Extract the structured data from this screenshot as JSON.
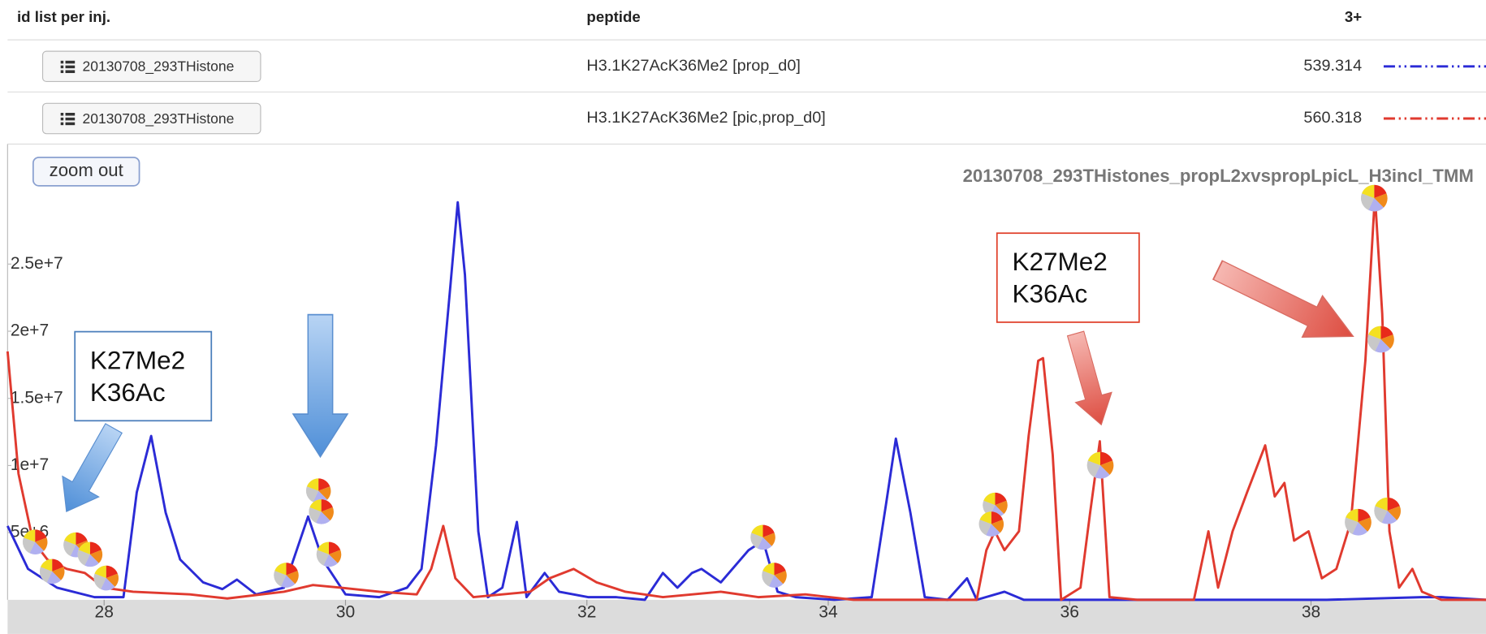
{
  "table": {
    "headers": [
      "id list per inj.",
      "peptide",
      "3+"
    ],
    "rows": [
      [
        "20130708_293THistone",
        "H3.1K27AcK36Me2 [prop_d0]",
        "539.314"
      ],
      [
        "20130708_293THistone",
        "H3.1K27AcK36Me2 [pic,prop_d0]",
        "560.318"
      ]
    ]
  },
  "zoom_button": "zoom out",
  "chart_data": {
    "type": "line",
    "title": "20130708_293THistones_propL2xvspropLpicL_H3incl_TMM",
    "xlim": [
      27.2,
      39.45
    ],
    "xticks": [
      28,
      30,
      32,
      34,
      36,
      38
    ],
    "ylim": [
      0,
      30900000
    ],
    "yticks": [
      {
        "value": 5000000,
        "label": "5e+6"
      },
      {
        "value": 10000000,
        "label": "1e+7"
      },
      {
        "value": 15000000,
        "label": "1.5e+7"
      },
      {
        "value": 20000000,
        "label": "2e+7"
      },
      {
        "value": 25000000,
        "label": "2.5e+7"
      }
    ],
    "grid": false,
    "series": [
      {
        "color": "#2b2bd6",
        "x": [
          27.2,
          27.37,
          27.61,
          27.92,
          28.16,
          28.27,
          28.39,
          28.51,
          28.63,
          28.82,
          28.98,
          29.1,
          29.26,
          29.49,
          29.69,
          29.81,
          30.0,
          30.28,
          30.51,
          30.63,
          30.75,
          30.87,
          30.93,
          30.99,
          31.1,
          31.18,
          31.3,
          31.42,
          31.5,
          31.65,
          31.77,
          32.01,
          32.24,
          32.48,
          32.63,
          32.75,
          32.87,
          32.95,
          33.11,
          33.34,
          33.46,
          33.58,
          33.73,
          34.05,
          34.36,
          34.48,
          34.56,
          34.68,
          34.8,
          34.99,
          35.15,
          35.23,
          35.46,
          35.62,
          36.56,
          38.13,
          38.92,
          39.08,
          39.45
        ],
        "values": [
          5500000,
          2300000,
          900000,
          200000,
          200000,
          8000000,
          12200000,
          6500000,
          3000000,
          1300000,
          800000,
          1500000,
          400000,
          900000,
          6200000,
          3000000,
          400000,
          200000,
          900000,
          2300000,
          11500000,
          23500000,
          29600000,
          24200000,
          5100000,
          200000,
          900000,
          5800000,
          200000,
          2000000,
          600000,
          200000,
          200000,
          0,
          2000000,
          900000,
          2000000,
          2300000,
          1300000,
          3700000,
          4400000,
          600000,
          200000,
          0,
          200000,
          7200000,
          12000000,
          6500000,
          200000,
          0,
          1600000,
          0,
          600000,
          0,
          0,
          0,
          200000,
          200000,
          0
        ]
      },
      {
        "color": "#e03a2f",
        "x": [
          27.2,
          27.29,
          27.41,
          27.53,
          27.69,
          27.84,
          28.0,
          28.24,
          28.71,
          29.02,
          29.49,
          29.73,
          29.96,
          30.28,
          30.59,
          30.71,
          30.81,
          30.91,
          31.06,
          31.53,
          31.69,
          31.89,
          32.08,
          32.32,
          32.63,
          33.11,
          33.42,
          33.81,
          34.21,
          34.99,
          35.23,
          35.31,
          35.38,
          35.46,
          35.58,
          35.66,
          35.74,
          35.78,
          35.86,
          35.93,
          36.09,
          36.17,
          36.25,
          36.33,
          36.56,
          37.03,
          37.15,
          37.23,
          37.35,
          37.47,
          37.62,
          37.7,
          37.78,
          37.86,
          37.98,
          38.09,
          38.21,
          38.33,
          38.45,
          38.53,
          38.59,
          38.65,
          38.73,
          38.84,
          38.92,
          39.08,
          39.45
        ],
        "values": [
          18500000,
          9400000,
          4400000,
          3000000,
          2300000,
          2000000,
          900000,
          600000,
          400000,
          100000,
          600000,
          1100000,
          900000,
          600000,
          400000,
          2300000,
          5500000,
          1600000,
          200000,
          600000,
          1600000,
          2300000,
          1300000,
          600000,
          200000,
          600000,
          200000,
          400000,
          0,
          0,
          0,
          3700000,
          5100000,
          3700000,
          5100000,
          12200000,
          17800000,
          18000000,
          10800000,
          0,
          900000,
          6500000,
          11800000,
          200000,
          0,
          0,
          5100000,
          900000,
          5100000,
          8000000,
          11500000,
          7700000,
          8700000,
          4400000,
          5100000,
          1600000,
          2300000,
          5800000,
          17800000,
          30100000,
          21300000,
          5100000,
          900000,
          2300000,
          600000,
          0,
          0
        ]
      }
    ],
    "annotations": [
      [
        "K27Me2",
        "K36Ac"
      ],
      [
        "K27Me2",
        "K36Ac"
      ]
    ]
  }
}
